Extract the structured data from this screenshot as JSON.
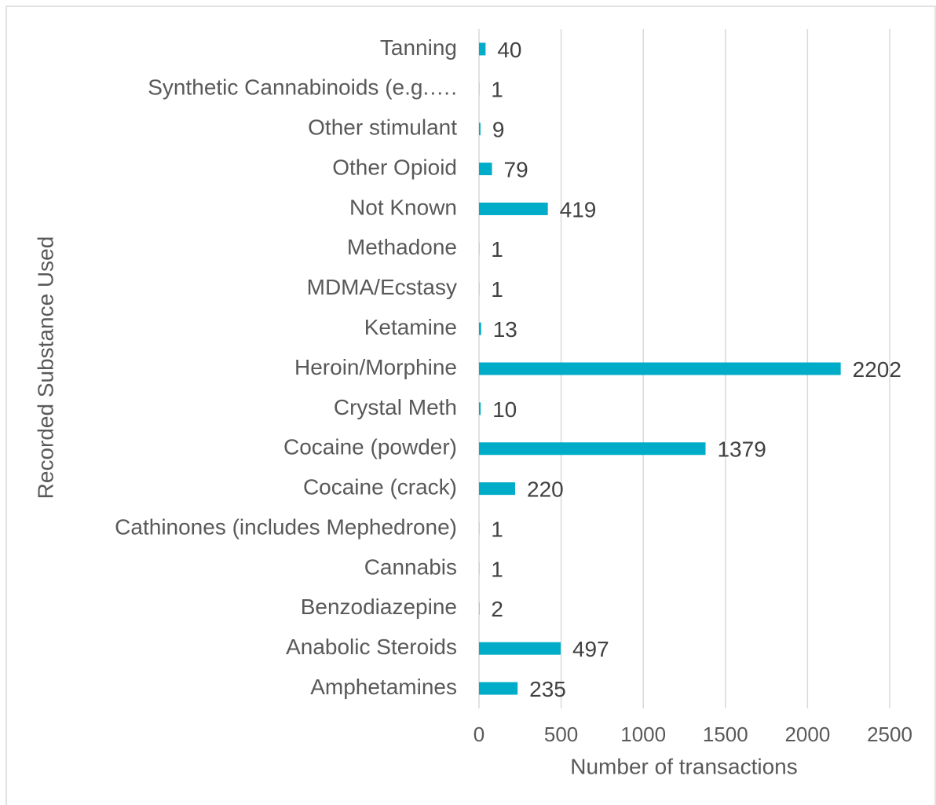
{
  "chart_data": {
    "type": "bar",
    "orientation": "horizontal",
    "xlabel": "Number of transactions",
    "ylabel": "Recorded Substance Used",
    "categories": [
      "Tanning",
      "Synthetic Cannabinoids (e.g.….",
      "Other stimulant",
      "Other Opioid",
      "Not Known",
      "Methadone",
      "MDMA/Ecstasy",
      "Ketamine",
      "Heroin/Morphine",
      "Crystal Meth",
      "Cocaine (powder)",
      "Cocaine (crack)",
      "Cathinones (includes Mephedrone)",
      "Cannabis",
      "Benzodiazepine",
      "Anabolic Steroids",
      "Amphetamines"
    ],
    "values": [
      40,
      1,
      9,
      79,
      419,
      1,
      1,
      13,
      2202,
      10,
      1379,
      220,
      1,
      1,
      2,
      497,
      235
    ],
    "color": "#00acc8",
    "xlim": [
      0,
      2500
    ],
    "xticks": [
      0,
      500,
      1000,
      1500,
      2000,
      2500
    ],
    "grid": true
  }
}
